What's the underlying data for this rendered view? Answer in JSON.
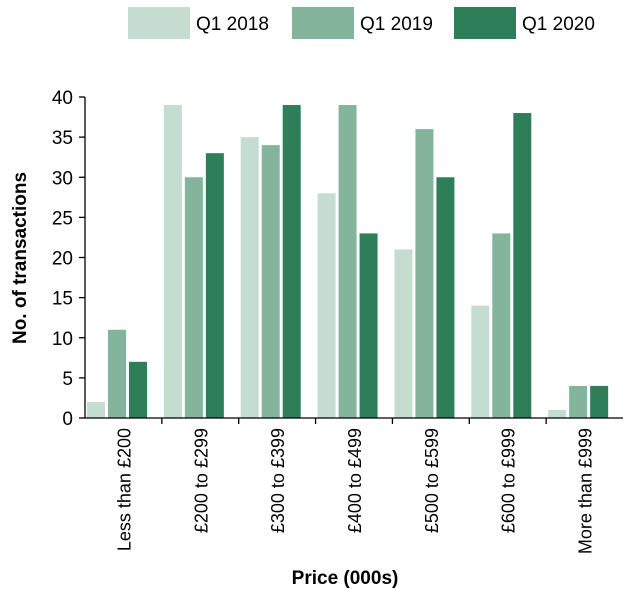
{
  "chart_data": {
    "type": "bar",
    "categories": [
      "Less than £200",
      "£200 to £299",
      "£300 to £399",
      "£400 to £499",
      "£500 to £599",
      "£600 to £999",
      "More than £999"
    ],
    "series": [
      {
        "name": "Q1 2018",
        "values": [
          2,
          39,
          35,
          28,
          21,
          14,
          1
        ],
        "color": "#c5dcd0"
      },
      {
        "name": "Q1 2019",
        "values": [
          11,
          30,
          34,
          39,
          36,
          23,
          4
        ],
        "color": "#84b49b"
      },
      {
        "name": "Q1 2020",
        "values": [
          7,
          33,
          39,
          23,
          30,
          38,
          4
        ],
        "color": "#2e7f59"
      }
    ],
    "xlabel": "Price (000s)",
    "ylabel": "No. of transactions",
    "ylim": [
      0,
      40
    ],
    "yticks": [
      0,
      5,
      10,
      15,
      20,
      25,
      30,
      35,
      40
    ],
    "legend_position": "top",
    "grid": false
  }
}
